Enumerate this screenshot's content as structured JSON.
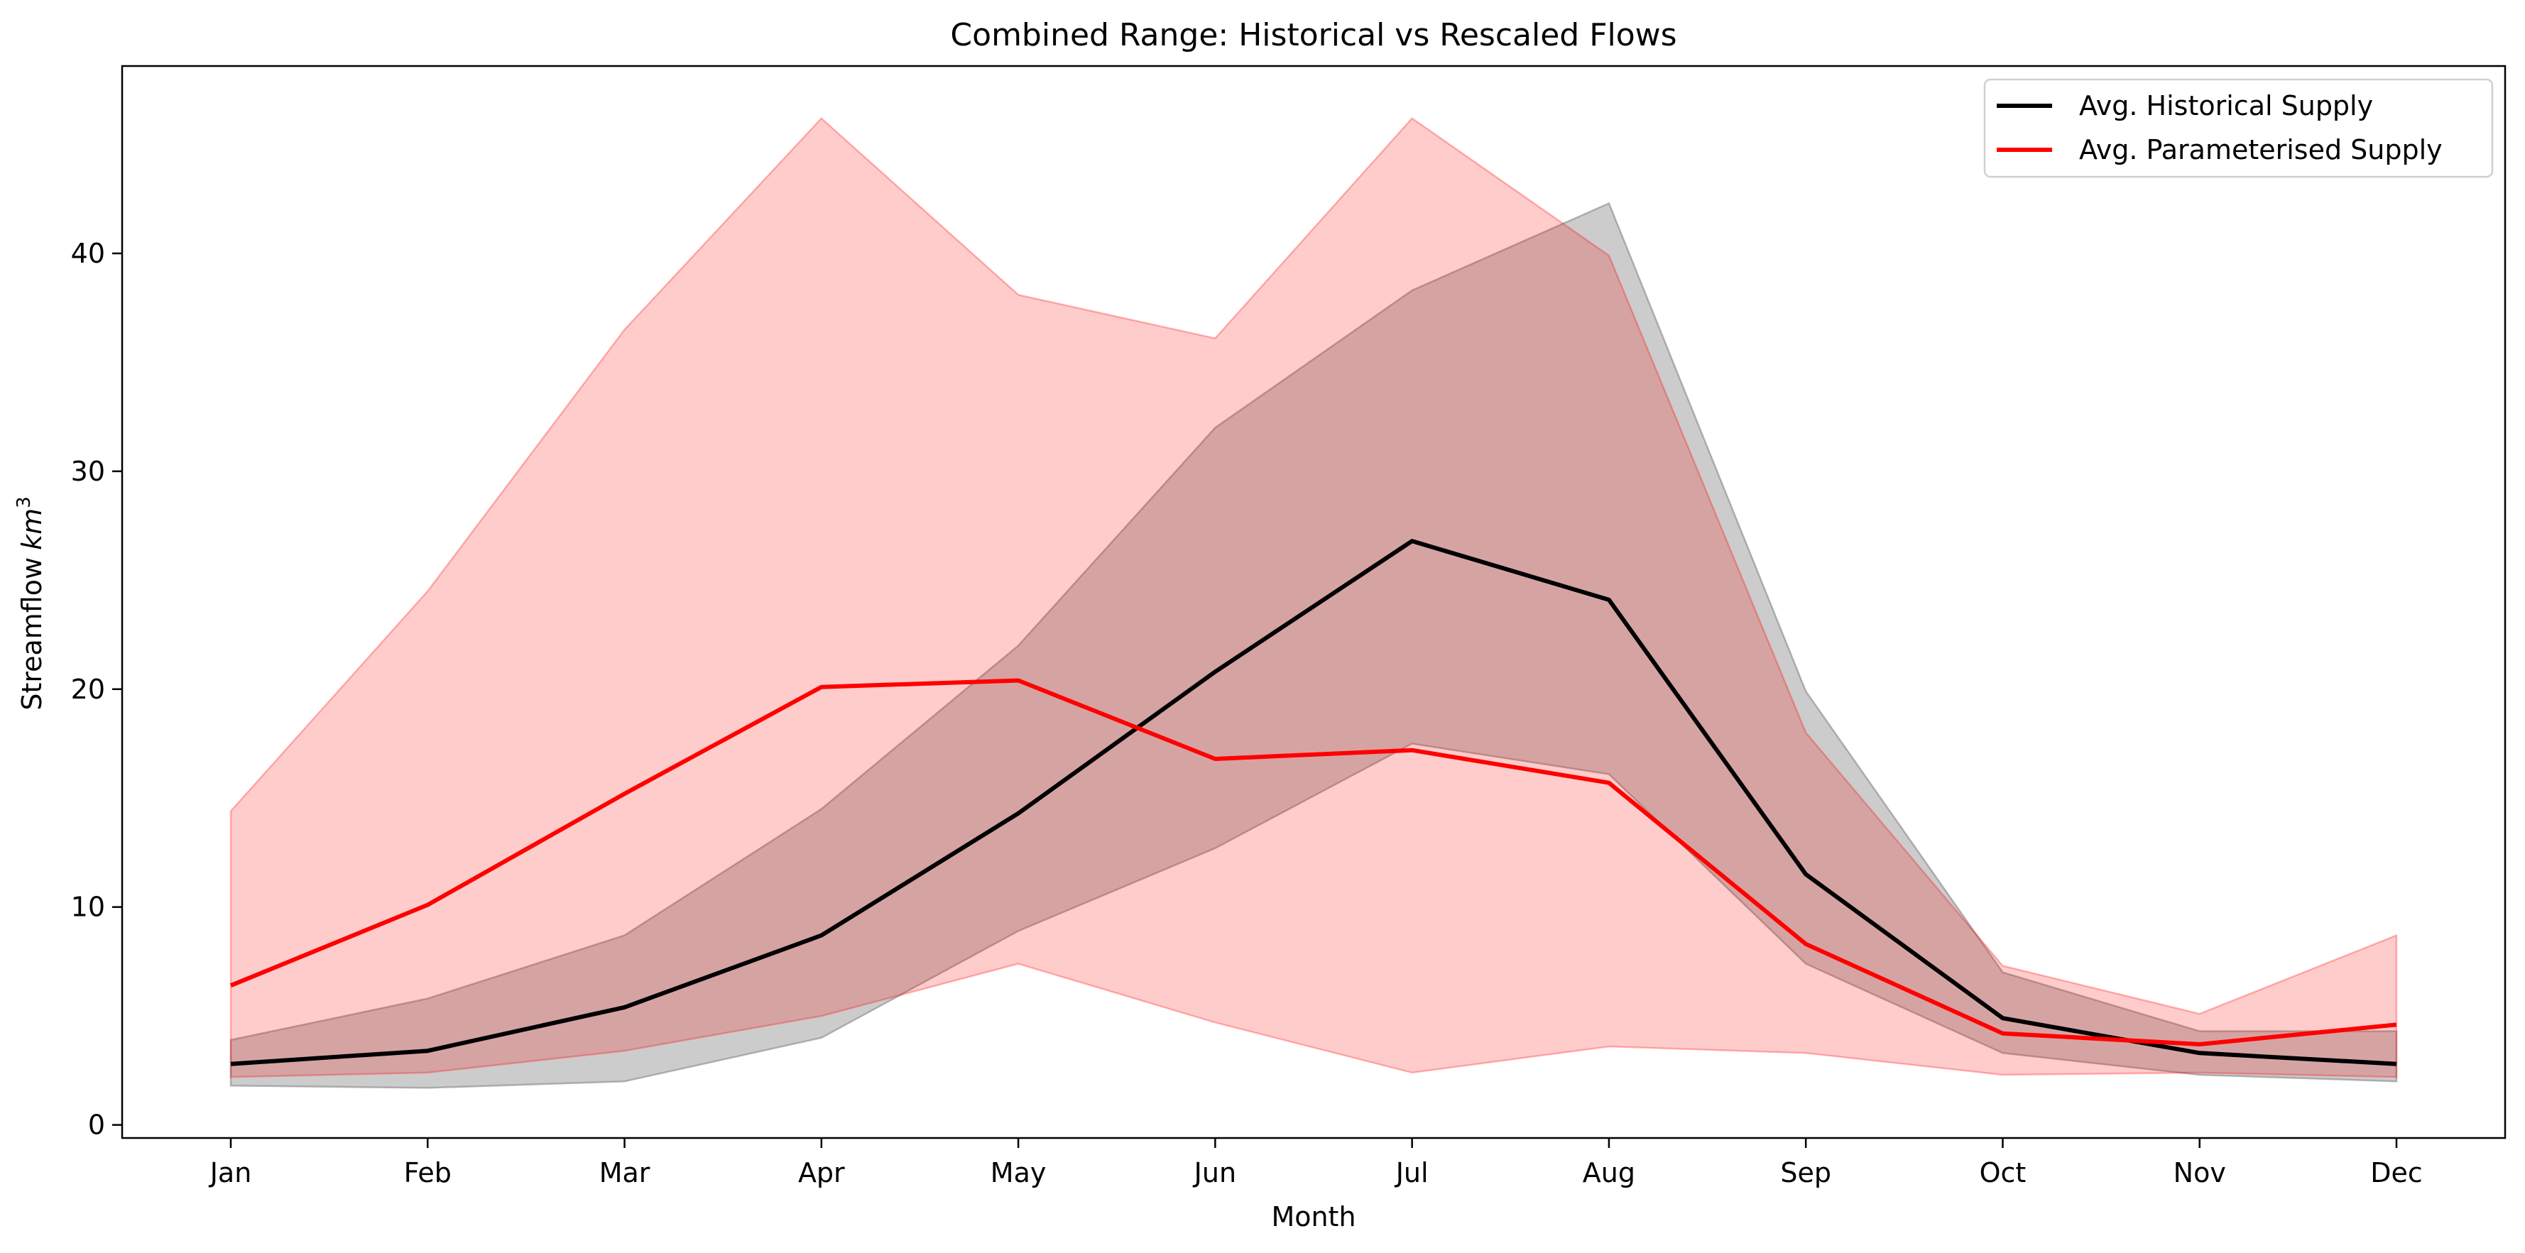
{
  "chart_data": {
    "type": "line",
    "title": "Combined Range: Historical vs Rescaled Flows",
    "xlabel": "Month",
    "ylabel": "Streamflow",
    "ylabel_unit_base": "km",
    "ylabel_unit_exp": "3",
    "categories": [
      "Jan",
      "Feb",
      "Mar",
      "Apr",
      "May",
      "Jun",
      "Jul",
      "Aug",
      "Sep",
      "Oct",
      "Nov",
      "Dec"
    ],
    "ylim": [
      -0.6,
      48.6
    ],
    "yticks": [
      0,
      10,
      20,
      30,
      40
    ],
    "grid": false,
    "legend_position": "top-right",
    "series": [
      {
        "name": "Avg. Historical Supply",
        "color": "#000000",
        "values": [
          2.8,
          3.4,
          5.4,
          8.7,
          14.3,
          20.8,
          26.8,
          24.1,
          11.5,
          4.9,
          3.3,
          2.8
        ]
      },
      {
        "name": "Avg. Parameterised Supply",
        "color": "#ff0000",
        "values": [
          6.4,
          10.1,
          15.2,
          20.1,
          20.4,
          16.8,
          17.2,
          15.7,
          8.3,
          4.2,
          3.7,
          4.6
        ]
      }
    ],
    "bands": [
      {
        "color": "#808080",
        "opacity": 0.4,
        "lower": [
          1.8,
          1.7,
          2.0,
          4.0,
          8.9,
          12.7,
          17.5,
          16.1,
          7.4,
          3.3,
          2.3,
          2.0
        ],
        "upper": [
          3.9,
          5.8,
          8.7,
          14.5,
          22.0,
          32.0,
          38.3,
          42.3,
          19.9,
          7.0,
          4.3,
          4.3
        ]
      },
      {
        "color": "#ff0000",
        "opacity": 0.2,
        "lower": [
          2.2,
          2.4,
          3.4,
          5.0,
          7.4,
          4.7,
          2.4,
          3.6,
          3.3,
          2.3,
          2.4,
          2.2
        ],
        "upper": [
          14.4,
          24.5,
          36.5,
          46.2,
          38.1,
          36.1,
          46.2,
          39.9,
          18.0,
          7.3,
          5.1,
          8.7
        ]
      }
    ]
  }
}
